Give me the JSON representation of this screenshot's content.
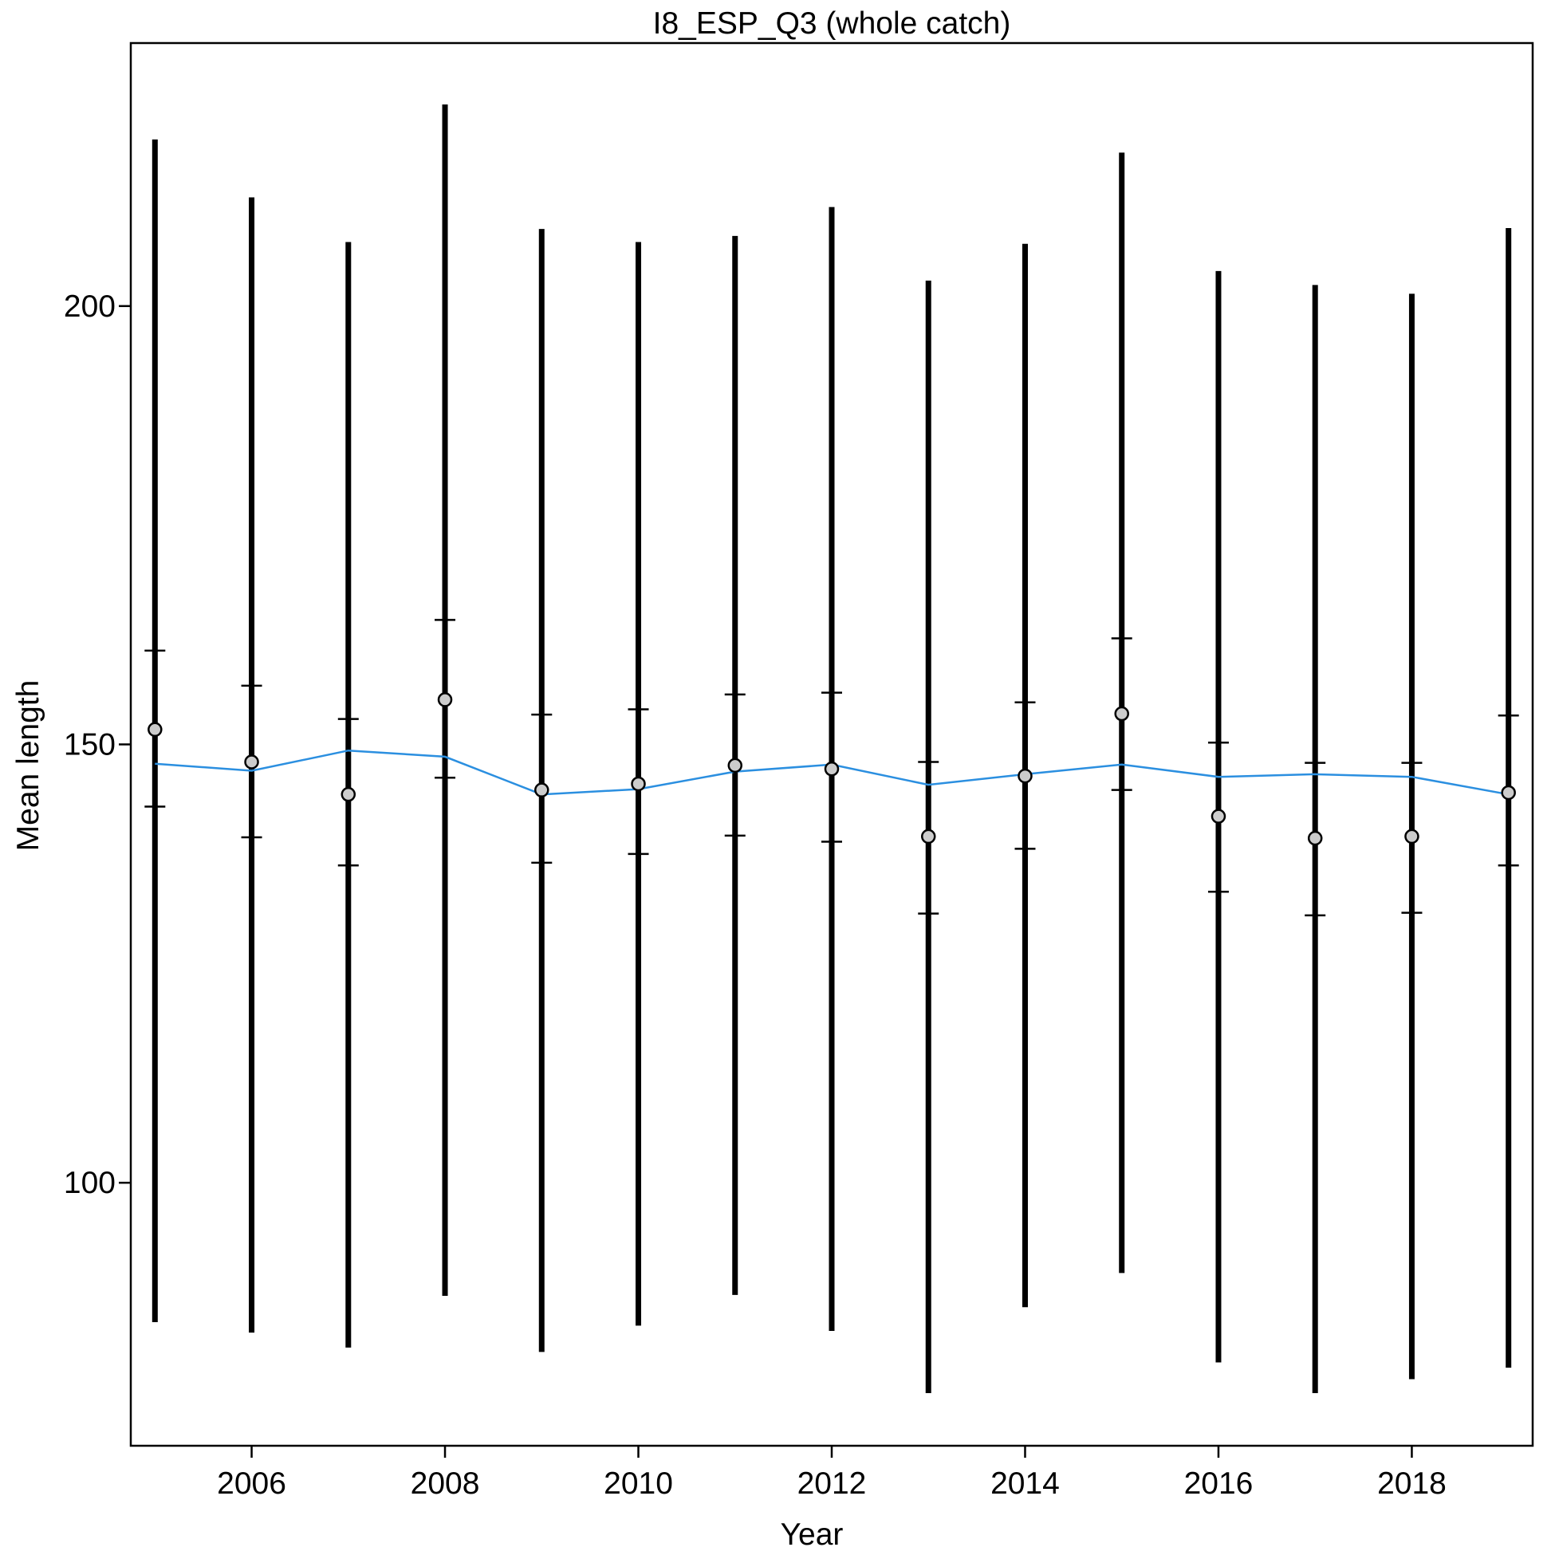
{
  "chart_data": {
    "type": "scatter",
    "title": "I8_ESP_Q3 (whole catch)",
    "xlabel": "Year",
    "ylabel": "Mean length",
    "xlim": [
      2004.75,
      2019.25
    ],
    "ylim": [
      70,
      230
    ],
    "x_ticks": [
      2006,
      2008,
      2010,
      2012,
      2014,
      2016,
      2018
    ],
    "x_tick_labels": [
      "2006",
      "2008",
      "2010",
      "2012",
      "2014",
      "2016",
      "2018"
    ],
    "y_ticks": [
      100,
      150,
      200
    ],
    "y_tick_labels": [
      "100",
      "150",
      "200"
    ],
    "grid": false,
    "colors": {
      "observed": "#000000",
      "point_fill": "#cccccc",
      "fitted": "#2b8fe0"
    },
    "x": [
      2005,
      2006,
      2007,
      2008,
      2009,
      2010,
      2011,
      2012,
      2013,
      2014,
      2015,
      2016,
      2017,
      2018,
      2019
    ],
    "series": [
      {
        "values": [
          151.7,
          148.0,
          144.3,
          155.1,
          144.8,
          145.5,
          147.6,
          147.2,
          139.5,
          146.4,
          153.5,
          141.8,
          139.3,
          139.5,
          144.5
        ]
      },
      {
        "values": [
          147.8,
          147.0,
          149.3,
          148.6,
          144.3,
          144.9,
          146.9,
          147.7,
          145.4,
          146.6,
          147.7,
          146.3,
          146.6,
          146.3,
          144.3
        ]
      }
    ],
    "inner_interval_upper": [
      160.7,
      156.7,
      152.9,
      164.2,
      153.4,
      154.0,
      155.7,
      155.9,
      148.0,
      154.8,
      162.1,
      150.2,
      147.9,
      147.9,
      153.3
    ],
    "inner_interval_lower": [
      142.9,
      139.4,
      136.2,
      146.2,
      136.5,
      137.5,
      139.6,
      138.9,
      130.7,
      138.1,
      144.8,
      133.2,
      130.5,
      130.8,
      136.2
    ],
    "outer_interval_upper": [
      219.0,
      212.4,
      207.3,
      223.0,
      208.8,
      207.3,
      208.0,
      211.3,
      202.9,
      207.1,
      217.5,
      204.0,
      202.4,
      201.4,
      208.9
    ],
    "outer_interval_lower": [
      84.1,
      82.9,
      81.2,
      87.1,
      80.7,
      83.7,
      87.2,
      83.1,
      76.0,
      85.8,
      89.7,
      79.5,
      76.0,
      77.6,
      78.9
    ]
  }
}
